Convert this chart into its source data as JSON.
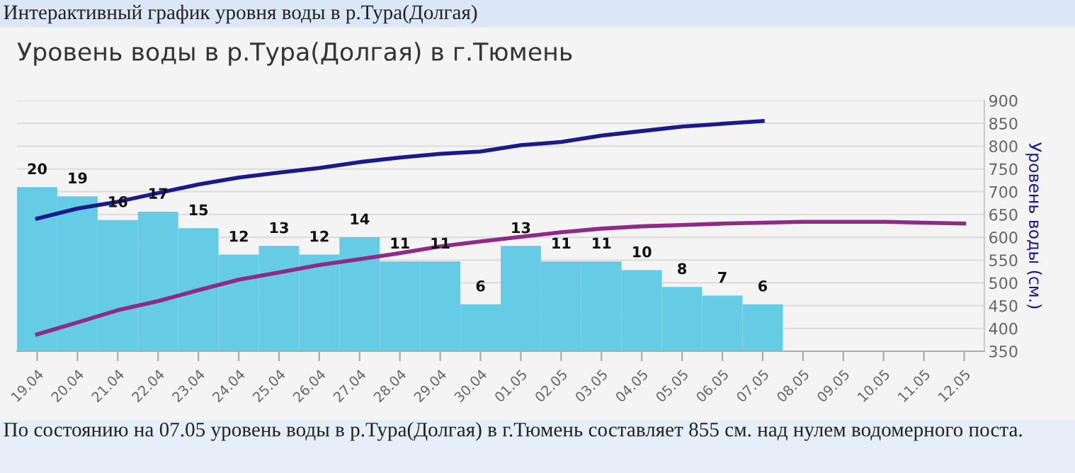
{
  "chart_data": {
    "type": "bar",
    "title": "Интерактивный график уровня воды в р.Тура(Долгая)",
    "subtitle": "Уровень воды в р.Тура(Долгая) в г.Тюмень",
    "ylabel": "Уровень воды (см.)",
    "categories": [
      "19.04",
      "20.04",
      "21.04",
      "22.04",
      "23.04",
      "24.04",
      "25.04",
      "26.04",
      "27.04",
      "28.04",
      "29.04",
      "30.04",
      "01.05",
      "02.05",
      "03.05",
      "04.05",
      "05.05",
      "06.05",
      "07.05",
      "08.05",
      "09.05",
      "10.05",
      "11.05",
      "12.05"
    ],
    "series": [
      {
        "color": "#66cce6",
        "values": [
          710,
          690,
          638,
          656,
          620,
          562,
          581,
          562,
          600,
          547,
          547,
          453,
          581,
          547,
          547,
          528,
          491,
          472,
          453,
          null,
          null,
          null,
          null,
          null
        ]
      },
      {
        "type": "line",
        "color": "#1a1a8c",
        "values": [
          641,
          663,
          678,
          697,
          716,
          731,
          742,
          752,
          765,
          775,
          783,
          788,
          802,
          809,
          823,
          833,
          843,
          849,
          855,
          null,
          null,
          null,
          null,
          null
        ]
      },
      {
        "type": "line",
        "color": "#8e2a88",
        "values": [
          387,
          413,
          440,
          460,
          484,
          507,
          523,
          539,
          552,
          565,
          580,
          591,
          601,
          611,
          619,
          624,
          627,
          630,
          632,
          634,
          634,
          634,
          632,
          630
        ]
      }
    ],
    "ylim": [
      350,
      900
    ],
    "yticks": [
      350,
      400,
      450,
      500,
      550,
      600,
      650,
      700,
      750,
      800,
      850,
      900
    ],
    "grid": "y",
    "legend": false,
    "marker": "none",
    "line_style": "solid",
    "annotations": [
      {
        "text": "20",
        "x": "19.04",
        "y": 710
      },
      {
        "text": "19",
        "x": "20.04",
        "y": 690
      },
      {
        "text": "16",
        "x": "21.04",
        "y": 638
      },
      {
        "text": "17",
        "x": "22.04",
        "y": 656
      },
      {
        "text": "15",
        "x": "23.04",
        "y": 620
      },
      {
        "text": "12",
        "x": "24.04",
        "y": 562
      },
      {
        "text": "13",
        "x": "25.04",
        "y": 581
      },
      {
        "text": "12",
        "x": "26.04",
        "y": 562
      },
      {
        "text": "14",
        "x": "27.04",
        "y": 600
      },
      {
        "text": "11",
        "x": "28.04",
        "y": 547
      },
      {
        "text": "11",
        "x": "29.04",
        "y": 547
      },
      {
        "text": "6",
        "x": "30.04",
        "y": 453
      },
      {
        "text": "13",
        "x": "01.05",
        "y": 581
      },
      {
        "text": "11",
        "x": "02.05",
        "y": 547
      },
      {
        "text": "11",
        "x": "03.05",
        "y": 547
      },
      {
        "text": "10",
        "x": "04.05",
        "y": 528
      },
      {
        "text": "8",
        "x": "05.05",
        "y": 491
      },
      {
        "text": "7",
        "x": "06.05",
        "y": 472
      },
      {
        "text": "6",
        "x": "07.05",
        "y": 453
      },
      "По состоянию на 07.05 уровень воды в р.Тура(Долгая) в г.Тюмень составляет 855 см. над нулем водомерного поста."
    ]
  }
}
